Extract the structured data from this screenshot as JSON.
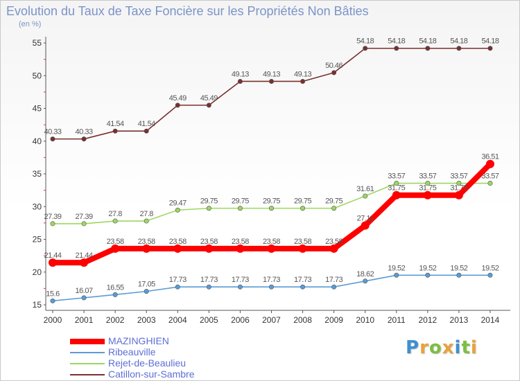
{
  "header": {
    "title": "Evolution du Taux de Taxe Foncière sur les Propriétés Non Bâties",
    "unit": "(en %)"
  },
  "logo": {
    "text": "Proxiti",
    "letters": [
      {
        "ch": "P",
        "color": "#3f8fd0"
      },
      {
        "ch": "r",
        "color": "#e9a23b"
      },
      {
        "ch": "o",
        "color": "#7cbf3f"
      },
      {
        "ch": "x",
        "color": "#e9a23b"
      },
      {
        "ch": "i",
        "color": "#3f8fd0"
      },
      {
        "ch": "t",
        "color": "#7cbf3f"
      },
      {
        "ch": "i",
        "color": "#e9a23b"
      }
    ]
  },
  "chart_data": {
    "type": "line",
    "title": "Evolution du Taux de Taxe Foncière sur les Propriétés Non Bâties",
    "ylabel": "(en %)",
    "xlabel": "",
    "x": [
      "2000",
      "2001",
      "2002",
      "2003",
      "2004",
      "2005",
      "2006",
      "2007",
      "2008",
      "2009",
      "2010",
      "2011",
      "2012",
      "2013",
      "2014"
    ],
    "ylim": [
      15,
      55
    ],
    "yticks": [
      15,
      20,
      25,
      30,
      35,
      40,
      45,
      50,
      55
    ],
    "grid": false,
    "legend_placement": "bottom-left",
    "series": [
      {
        "name": "MAZINGHIEN",
        "color": "#ff0000",
        "values": [
          21.44,
          21.44,
          23.58,
          23.58,
          23.58,
          23.58,
          23.58,
          23.58,
          23.58,
          23.58,
          27.11,
          31.75,
          31.75,
          31.75,
          36.51
        ],
        "labels": [
          "21.44",
          "21.44",
          "23.58",
          "23.58",
          "23.58",
          "23.58",
          "23.58",
          "23.58",
          "23.58",
          "23.58",
          "27.11",
          "31.75",
          "31.75",
          "31.75",
          "36.51"
        ]
      },
      {
        "name": "Ribeauville",
        "color": "#5b9bd5",
        "values": [
          15.6,
          16.07,
          16.55,
          17.05,
          17.73,
          17.73,
          17.73,
          17.73,
          17.73,
          17.73,
          18.62,
          19.52,
          19.52,
          19.52,
          19.52
        ],
        "labels": [
          "15.6",
          "16.07",
          "16.55",
          "17.05",
          "17.73",
          "17.73",
          "17.73",
          "17.73",
          "17.73",
          "17.73",
          "18.62",
          "19.52",
          "19.52",
          "19.52",
          "19.52"
        ]
      },
      {
        "name": "Rejet-de-Beaulieu",
        "color": "#9ed760",
        "values": [
          27.39,
          27.39,
          27.8,
          27.8,
          29.47,
          29.75,
          29.75,
          29.75,
          29.75,
          29.75,
          31.61,
          33.57,
          33.57,
          33.57,
          33.57
        ],
        "labels": [
          "27.39",
          "27.39",
          "27.8",
          "27.8",
          "29.47",
          "29.75",
          "29.75",
          "29.75",
          "29.75",
          "29.75",
          "31.61",
          "33.57",
          "33.57",
          "33.57",
          "33.57"
        ]
      },
      {
        "name": "Catillon-sur-Sambre",
        "color": "#7b2f2f",
        "values": [
          40.33,
          40.33,
          41.54,
          41.54,
          45.49,
          45.49,
          49.13,
          49.13,
          49.13,
          50.46,
          54.18,
          54.18,
          54.18,
          54.18,
          54.18
        ],
        "labels": [
          "40.33",
          "40.33",
          "41.54",
          "41.54",
          "45.49",
          "45.49",
          "49.13",
          "49.13",
          "49.13",
          "50.46",
          "54.18",
          "54.18",
          "54.18",
          "54.18",
          "54.18"
        ]
      }
    ]
  }
}
